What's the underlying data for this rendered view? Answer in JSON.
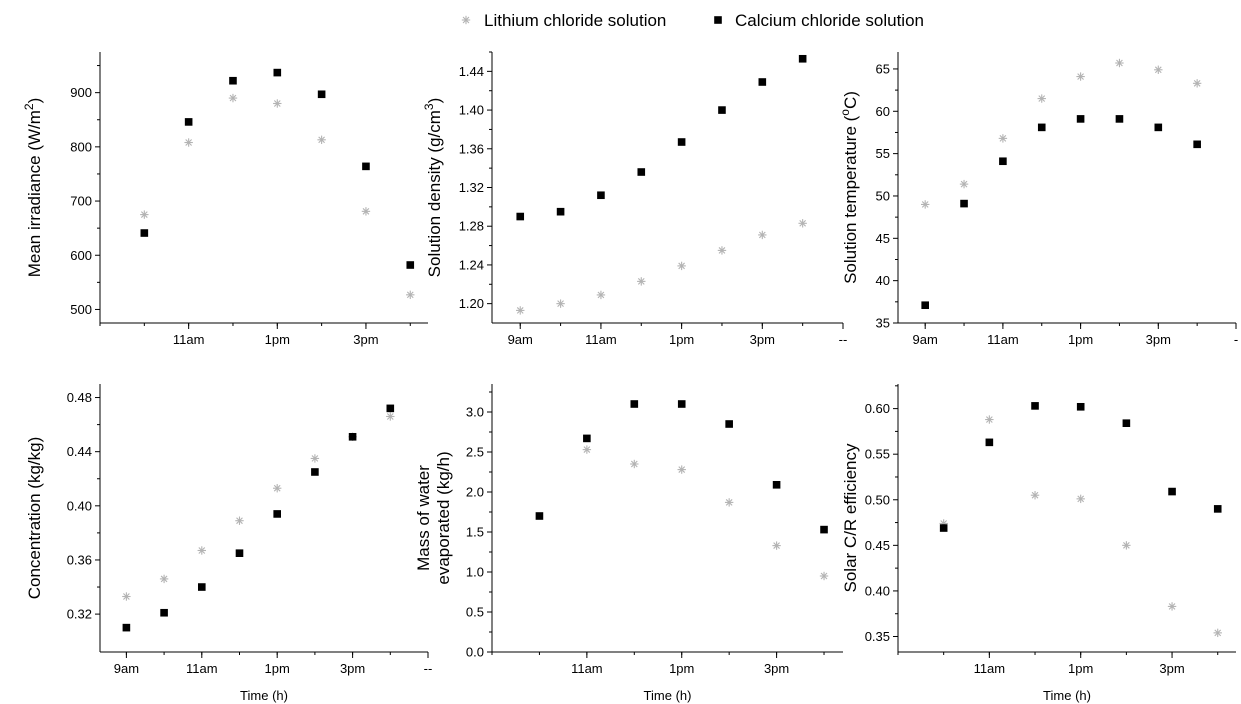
{
  "legend": {
    "items": [
      {
        "label": "Lithium chloride solution",
        "marker": "asterisk",
        "color": "#b3b3b3"
      },
      {
        "label": "Calcium chloride solution",
        "marker": "square",
        "color": "#000000"
      }
    ]
  },
  "chart_data": [
    {
      "type": "scatter",
      "ylabel": "Mean irradiance (W/m2)",
      "xlabel": "",
      "x_ticks": [
        "11am",
        "1pm",
        "3pm"
      ],
      "y_ticks": [
        500,
        600,
        700,
        800,
        900
      ],
      "ylim": [
        475,
        975
      ],
      "xlim": [
        9,
        16.4
      ],
      "series": [
        {
          "name": "Lithium chloride solution",
          "x": [
            10,
            11,
            12,
            13,
            14,
            15,
            16
          ],
          "y": [
            675,
            808,
            890,
            880,
            813,
            681,
            527
          ]
        },
        {
          "name": "Calcium chloride solution",
          "x": [
            10,
            11,
            12,
            13,
            14,
            15,
            16
          ],
          "y": [
            641,
            846,
            922,
            937,
            897,
            764,
            582
          ]
        }
      ]
    },
    {
      "type": "scatter",
      "ylabel": "Solution density (g/cm3)",
      "xlabel": "",
      "x_ticks": [
        "9am",
        "11am",
        "1pm",
        "3pm",
        "--"
      ],
      "y_ticks": [
        1.2,
        1.24,
        1.28,
        1.32,
        1.36,
        1.4,
        1.44
      ],
      "ylim": [
        1.18,
        1.46
      ],
      "xlim": [
        8.3,
        17
      ],
      "series": [
        {
          "name": "Lithium chloride solution",
          "x": [
            9,
            10,
            11,
            12,
            13,
            14,
            15,
            16
          ],
          "y": [
            1.193,
            1.2,
            1.209,
            1.223,
            1.239,
            1.255,
            1.271,
            1.283
          ]
        },
        {
          "name": "Calcium chloride solution",
          "x": [
            9,
            10,
            11,
            12,
            13,
            14,
            15,
            16
          ],
          "y": [
            1.29,
            1.295,
            1.312,
            1.336,
            1.367,
            1.4,
            1.429,
            1.453
          ]
        }
      ]
    },
    {
      "type": "scatter",
      "ylabel": "Solution temperature (oC)",
      "xlabel": "",
      "x_ticks": [
        "9am",
        "11am",
        "1pm",
        "3pm",
        "-"
      ],
      "y_ticks": [
        35,
        40,
        45,
        50,
        55,
        60,
        65
      ],
      "ylim": [
        35,
        67
      ],
      "xlim": [
        8.3,
        17
      ],
      "series": [
        {
          "name": "Lithium chloride solution",
          "x": [
            9,
            10,
            11,
            12,
            13,
            14,
            15,
            16
          ],
          "y": [
            49,
            51.4,
            56.8,
            61.5,
            64.1,
            65.7,
            64.9,
            63.3
          ]
        },
        {
          "name": "Calcium chloride solution",
          "x": [
            9,
            10,
            11,
            12,
            13,
            14,
            15,
            16
          ],
          "y": [
            37.1,
            49.1,
            54.1,
            58.1,
            59.1,
            59.1,
            58.1,
            56.1
          ]
        }
      ]
    },
    {
      "type": "scatter",
      "ylabel": "Concentration (kg/kg)",
      "xlabel": "Time (h)",
      "x_ticks": [
        "9am",
        "11am",
        "1pm",
        "3pm",
        "--"
      ],
      "y_ticks": [
        0.32,
        0.36,
        0.4,
        0.44,
        0.48
      ],
      "ylim": [
        0.292,
        0.49
      ],
      "xlim": [
        8.3,
        17
      ],
      "series": [
        {
          "name": "Lithium chloride solution",
          "x": [
            9,
            10,
            11,
            12,
            13,
            14,
            15,
            16
          ],
          "y": [
            0.333,
            0.346,
            0.367,
            0.389,
            0.413,
            0.435,
            0.451,
            0.466
          ]
        },
        {
          "name": "Calcium chloride solution",
          "x": [
            9,
            10,
            11,
            12,
            13,
            14,
            15,
            16
          ],
          "y": [
            0.31,
            0.321,
            0.34,
            0.365,
            0.394,
            0.425,
            0.451,
            0.472
          ]
        }
      ]
    },
    {
      "type": "scatter",
      "ylabel": "Mass of water evaporated (kg/h)",
      "xlabel": "Time (h)",
      "x_ticks": [
        "11am",
        "1pm",
        "3pm"
      ],
      "y_ticks": [
        0.0,
        0.5,
        1.0,
        1.5,
        2.0,
        2.5,
        3.0
      ],
      "ylim": [
        0,
        3.35
      ],
      "xlim": [
        9,
        16.4
      ],
      "series": [
        {
          "name": "Lithium chloride solution",
          "x": [
            11,
            12,
            13,
            14,
            15,
            16
          ],
          "y": [
            2.53,
            2.35,
            2.28,
            1.87,
            1.33,
            0.95
          ]
        },
        {
          "name": "Calcium chloride solution",
          "x": [
            10,
            11,
            12,
            13,
            14,
            15,
            16
          ],
          "y": [
            1.7,
            2.67,
            3.1,
            3.1,
            2.85,
            2.09,
            1.53
          ]
        }
      ]
    },
    {
      "type": "scatter",
      "ylabel": "Solar C/R efficiency",
      "xlabel": "Time (h)",
      "x_ticks": [
        "11am",
        "1pm",
        "3pm"
      ],
      "y_ticks": [
        0.35,
        0.4,
        0.45,
        0.5,
        0.55,
        0.6
      ],
      "ylim": [
        0.333,
        0.627
      ],
      "xlim": [
        9,
        16.4
      ],
      "series": [
        {
          "name": "Lithium chloride solution",
          "x": [
            10,
            11,
            12,
            13,
            14,
            15,
            16
          ],
          "y": [
            0.474,
            0.588,
            0.505,
            0.501,
            0.45,
            0.383,
            0.354
          ]
        },
        {
          "name": "Calcium chloride solution",
          "x": [
            10,
            11,
            12,
            13,
            14,
            15,
            16
          ],
          "y": [
            0.469,
            0.563,
            0.603,
            0.602,
            0.584,
            0.509,
            0.49
          ]
        }
      ]
    }
  ]
}
